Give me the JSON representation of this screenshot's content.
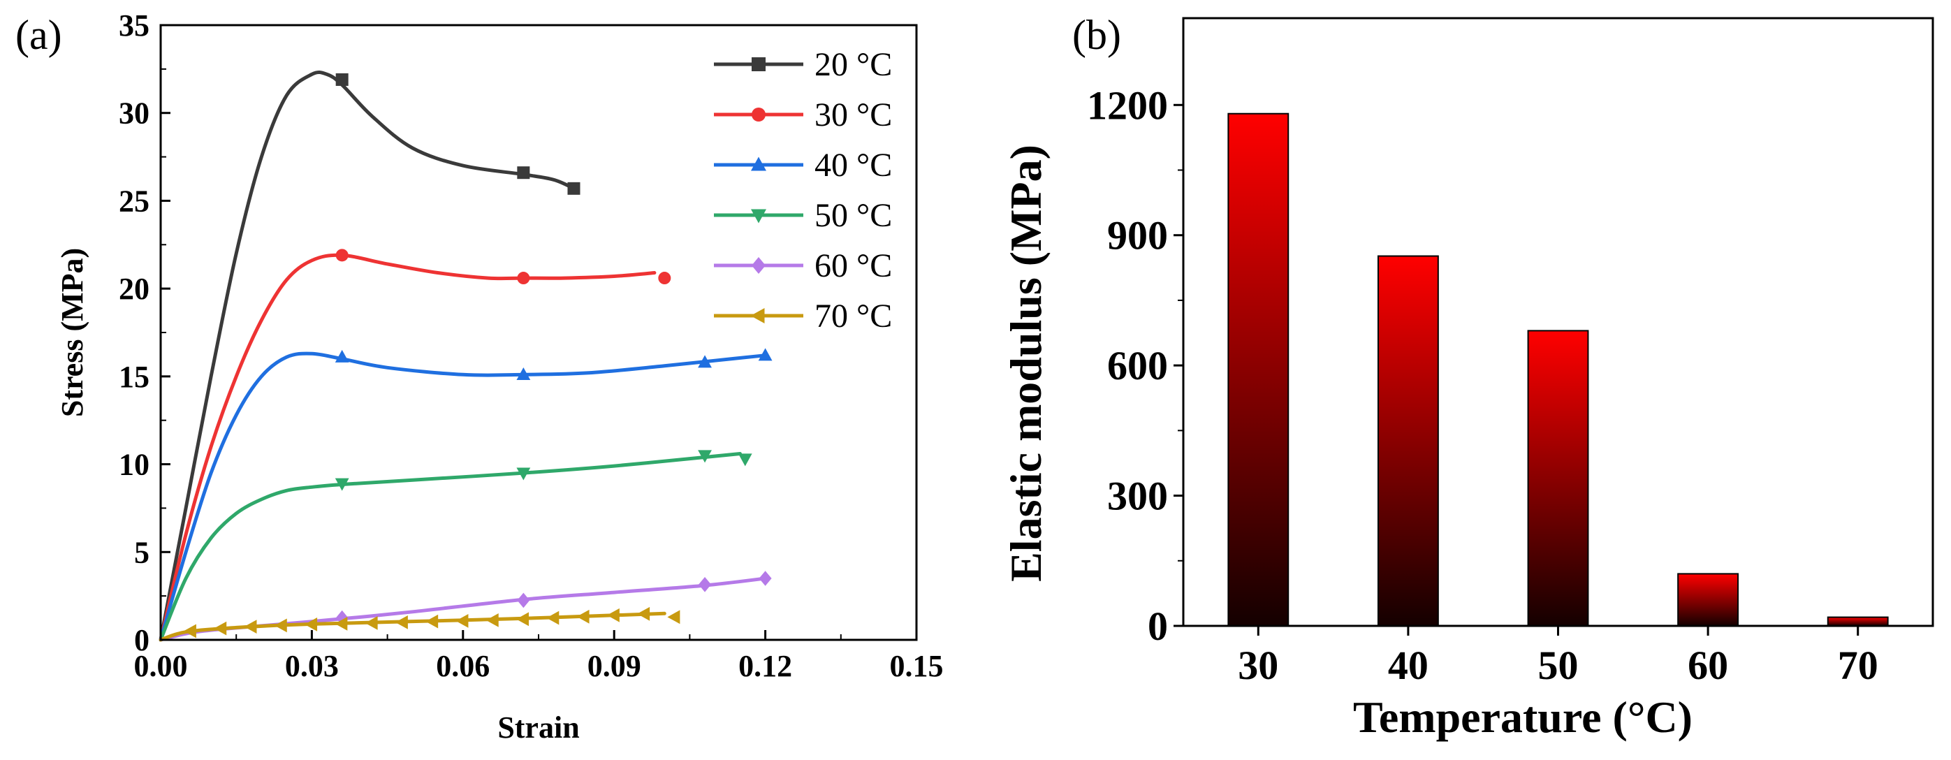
{
  "chart_data": [
    {
      "panel": "(a)",
      "type": "line",
      "xlabel": "Strain",
      "ylabel": "Stress (MPa)",
      "xlim": [
        0,
        0.15
      ],
      "ylim": [
        0,
        35
      ],
      "xticks": [
        "0.00",
        "0.03",
        "0.06",
        "0.09",
        "0.12",
        "0.15"
      ],
      "yticks": [
        "0",
        "5",
        "10",
        "15",
        "20",
        "25",
        "30",
        "35"
      ],
      "legend_position": "top-right",
      "series": [
        {
          "name": "20 °C",
          "color": "#3a3a3a",
          "marker": "square",
          "x": [
            0,
            0.005,
            0.01,
            0.015,
            0.02,
            0.025,
            0.03,
            0.033,
            0.036,
            0.042,
            0.05,
            0.06,
            0.072,
            0.078,
            0.082
          ],
          "y": [
            0,
            7.5,
            15,
            22,
            27.5,
            31,
            32.2,
            32.2,
            31.6,
            29.8,
            28,
            27,
            26.5,
            26.2,
            25.7
          ],
          "markers_x": [
            0.036,
            0.072,
            0.082
          ],
          "markers_y": [
            31.9,
            26.6,
            25.7
          ]
        },
        {
          "name": "30 °C",
          "color": "#ee3333",
          "marker": "circle",
          "x": [
            0,
            0.005,
            0.01,
            0.015,
            0.02,
            0.025,
            0.03,
            0.036,
            0.045,
            0.055,
            0.065,
            0.072,
            0.08,
            0.09,
            0.098
          ],
          "y": [
            0,
            6,
            11,
            15,
            18.2,
            20.5,
            21.6,
            21.9,
            21.4,
            20.9,
            20.6,
            20.6,
            20.6,
            20.7,
            20.9
          ],
          "markers_x": [
            0.036,
            0.072,
            0.1
          ],
          "markers_y": [
            21.9,
            20.6,
            20.6
          ]
        },
        {
          "name": "40 °C",
          "color": "#1f6fe0",
          "marker": "triangle-up",
          "x": [
            0,
            0.005,
            0.01,
            0.015,
            0.02,
            0.025,
            0.03,
            0.036,
            0.045,
            0.06,
            0.072,
            0.085,
            0.1,
            0.11,
            0.12
          ],
          "y": [
            0,
            5,
            9.5,
            12.8,
            15,
            16.1,
            16.3,
            16,
            15.5,
            15.1,
            15.1,
            15.2,
            15.6,
            15.9,
            16.2
          ],
          "markers_x": [
            0.036,
            0.072,
            0.108,
            0.12
          ],
          "markers_y": [
            16.1,
            15.1,
            15.8,
            16.2
          ]
        },
        {
          "name": "50 °C",
          "color": "#2fa86a",
          "marker": "triangle-down",
          "x": [
            0,
            0.005,
            0.01,
            0.015,
            0.02,
            0.025,
            0.03,
            0.036,
            0.05,
            0.072,
            0.09,
            0.108,
            0.115
          ],
          "y": [
            0,
            3.5,
            5.8,
            7.2,
            8,
            8.5,
            8.7,
            8.85,
            9.1,
            9.5,
            9.9,
            10.4,
            10.6
          ],
          "markers_x": [
            0.036,
            0.072,
            0.108,
            0.116
          ],
          "markers_y": [
            8.9,
            9.5,
            10.5,
            10.3
          ]
        },
        {
          "name": "60 °C",
          "color": "#b57ae8",
          "marker": "diamond",
          "x": [
            0,
            0.005,
            0.01,
            0.02,
            0.036,
            0.05,
            0.072,
            0.09,
            0.108,
            0.12
          ],
          "y": [
            0,
            0.35,
            0.55,
            0.8,
            1.2,
            1.6,
            2.3,
            2.7,
            3.1,
            3.5
          ],
          "markers_x": [
            0.036,
            0.072,
            0.108,
            0.12
          ],
          "markers_y": [
            1.25,
            2.25,
            3.15,
            3.5
          ]
        },
        {
          "name": "70 °C",
          "color": "#c89a10",
          "marker": "triangle-left",
          "x": [
            0,
            0.005,
            0.015,
            0.03,
            0.05,
            0.07,
            0.09,
            0.1
          ],
          "y": [
            0,
            0.45,
            0.7,
            0.9,
            1.05,
            1.2,
            1.4,
            1.5
          ],
          "markers_x": [
            0.006,
            0.012,
            0.018,
            0.024,
            0.03,
            0.036,
            0.042,
            0.048,
            0.054,
            0.06,
            0.066,
            0.072,
            0.078,
            0.084,
            0.09,
            0.096,
            0.102
          ],
          "markers_y": [
            0.5,
            0.65,
            0.75,
            0.82,
            0.88,
            0.92,
            0.96,
            1.0,
            1.05,
            1.08,
            1.12,
            1.18,
            1.25,
            1.32,
            1.4,
            1.48,
            1.3
          ]
        }
      ]
    },
    {
      "panel": "(b)",
      "type": "bar",
      "xlabel": "Temperature (°C)",
      "ylabel": "Elastic modulus (MPa)",
      "categories": [
        "30",
        "40",
        "50",
        "60",
        "70"
      ],
      "values": [
        1180,
        852,
        680,
        120,
        20
      ],
      "ylim": [
        0,
        1400
      ],
      "yticks": [
        "0",
        "300",
        "600",
        "900",
        "1200"
      ],
      "bar_gradient": {
        "top": "#ff0000",
        "bottom": "#140000"
      }
    }
  ]
}
